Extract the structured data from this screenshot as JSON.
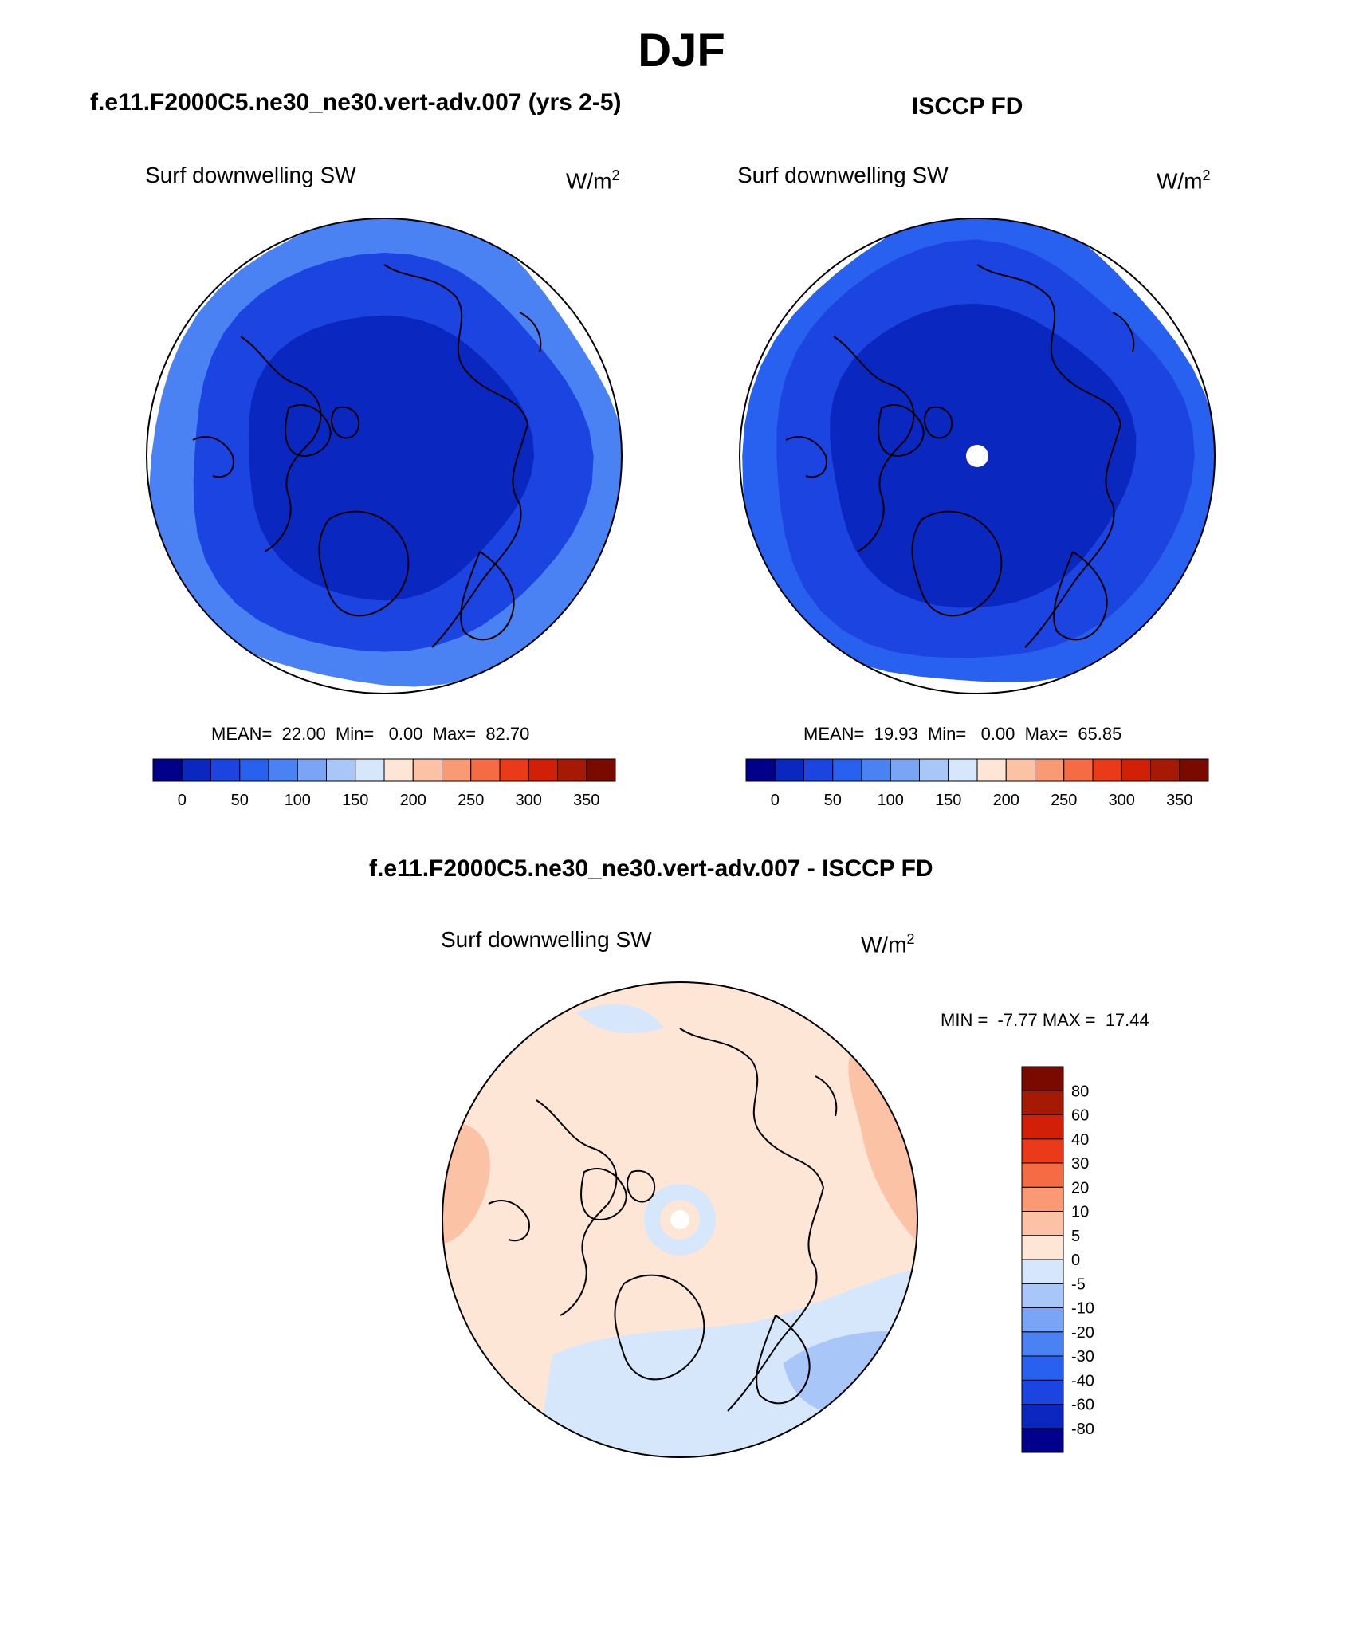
{
  "page": {
    "title": "DJF"
  },
  "panels": [
    {
      "title": "f.e11.F2000C5.ne30_ne30.vert-adv.007 (yrs 2-5)",
      "variable": "Surf downwelling SW",
      "units_base": "W/m",
      "units_exp": "2",
      "stats": {
        "mean_label": "MEAN=",
        "mean": "22.00",
        "min_label": "Min=",
        "min": "0.00",
        "max_label": "Max=",
        "max": "82.70"
      }
    },
    {
      "title": "ISCCP FD",
      "variable": "Surf downwelling SW",
      "units_base": "W/m",
      "units_exp": "2",
      "stats": {
        "mean_label": "MEAN=",
        "mean": "19.93",
        "min_label": "Min=",
        "min": "0.00",
        "max_label": "Max=",
        "max": "65.85"
      }
    },
    {
      "title": "f.e11.F2000C5.ne30_ne30.vert-adv.007 - ISCCP FD",
      "variable": "Surf downwelling SW",
      "units_base": "W/m",
      "units_exp": "2",
      "stats": {
        "min_label": "MIN =",
        "min": "-7.77",
        "max_label": "MAX =",
        "max": "17.44"
      }
    }
  ],
  "chart_data": [
    {
      "type": "heatmap",
      "projection": "north polar stereographic",
      "title": "f.e11.F2000C5.ne30_ne30.vert-adv.007 (yrs 2-5)",
      "variable": "Surf downwelling SW",
      "units": "W/m^2",
      "mean": 22.0,
      "min": 0.0,
      "max": 82.7,
      "colorbar": {
        "orientation": "horizontal",
        "levels": [
          0,
          25,
          50,
          75,
          100,
          125,
          150,
          175,
          200,
          225,
          250,
          275,
          300,
          325,
          350
        ],
        "tick_labels": [
          "0",
          "50",
          "100",
          "150",
          "200",
          "250",
          "300",
          "350"
        ],
        "colors": [
          "#00008b",
          "#0a28c0",
          "#1b44e0",
          "#2860f0",
          "#4a82f4",
          "#7aa4f6",
          "#a8c6f8",
          "#d6e6fb",
          "#fde6d6",
          "#fbc2a6",
          "#f99a74",
          "#f56c44",
          "#eb3a1a",
          "#d21f08",
          "#a61a05",
          "#7a0a00"
        ]
      },
      "field": [
        {
          "lat_min": 75,
          "lat_max": 90,
          "value": 0
        },
        {
          "lat_min": 60,
          "lat_max": 75,
          "value": 10
        },
        {
          "lat_min": 48,
          "lat_max": 60,
          "value": 45
        },
        {
          "lat_min": 40,
          "lat_max": 48,
          "value": 75
        }
      ]
    },
    {
      "type": "heatmap",
      "projection": "north polar stereographic",
      "title": "ISCCP FD",
      "variable": "Surf downwelling SW",
      "units": "W/m^2",
      "mean": 19.93,
      "min": 0.0,
      "max": 65.85,
      "missing_region": "north pole",
      "colorbar": {
        "orientation": "horizontal",
        "levels": [
          0,
          25,
          50,
          75,
          100,
          125,
          150,
          175,
          200,
          225,
          250,
          275,
          300,
          325,
          350
        ],
        "tick_labels": [
          "0",
          "50",
          "100",
          "150",
          "200",
          "250",
          "300",
          "350"
        ],
        "colors": [
          "#00008b",
          "#0a28c0",
          "#1b44e0",
          "#2860f0",
          "#4a82f4",
          "#7aa4f6",
          "#a8c6f8",
          "#d6e6fb",
          "#fde6d6",
          "#fbc2a6",
          "#f99a74",
          "#f56c44",
          "#eb3a1a",
          "#d21f08",
          "#a61a05",
          "#7a0a00"
        ]
      },
      "field": [
        {
          "lat_min": 75,
          "lat_max": 90,
          "value": 0
        },
        {
          "lat_min": 58,
          "lat_max": 75,
          "value": 10
        },
        {
          "lat_min": 46,
          "lat_max": 58,
          "value": 40
        },
        {
          "lat_min": 40,
          "lat_max": 46,
          "value": 65
        }
      ]
    },
    {
      "type": "heatmap",
      "projection": "north polar stereographic",
      "title": "f.e11.F2000C5.ne30_ne30.vert-adv.007 - ISCCP FD",
      "variable": "Surf downwelling SW",
      "units": "W/m^2",
      "min": -7.77,
      "max": 17.44,
      "missing_region": "north pole",
      "colorbar": {
        "orientation": "vertical",
        "levels": [
          -80,
          -60,
          -40,
          -30,
          -20,
          -10,
          -5,
          0,
          5,
          10,
          20,
          30,
          40,
          60,
          80
        ],
        "tick_labels": [
          "-80",
          "-60",
          "-40",
          "-30",
          "-20",
          "-10",
          "-5",
          "0",
          "5",
          "10",
          "20",
          "30",
          "40",
          "60",
          "80"
        ],
        "colors": [
          "#00008b",
          "#0a28c0",
          "#1b44e0",
          "#2860f0",
          "#4a82f4",
          "#7aa4f6",
          "#a8c6f8",
          "#d6e6fb",
          "#fde6d6",
          "#fbc2a6",
          "#f99a74",
          "#f56c44",
          "#eb3a1a",
          "#d21f08",
          "#a61a05",
          "#7a0a00"
        ]
      },
      "field": [
        {
          "region": "most of domain",
          "value": 2
        },
        {
          "region": "ring near pole",
          "value": -2
        },
        {
          "region": "Scandinavia / North Atlantic",
          "value": -3
        },
        {
          "region": "North Atlantic east",
          "value": -7
        },
        {
          "region": "North Pacific / Alaska",
          "value": 7
        }
      ]
    }
  ]
}
